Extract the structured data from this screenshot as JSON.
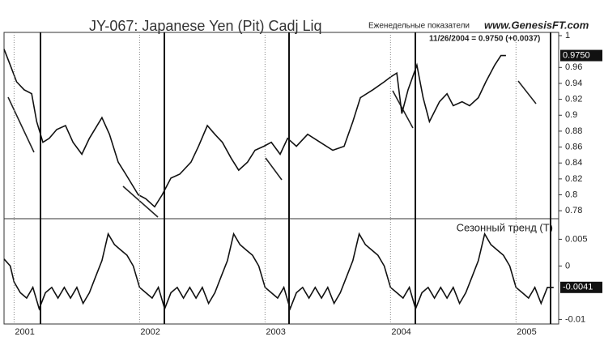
{
  "chart_data": [
    {
      "type": "line",
      "title": "JY-067:  Japanese Yen (Pit) Cadj Liq",
      "subtitle": "Еженедельные показатели",
      "site": "www.GenesisFT.com",
      "annotation": "11/26/2004 = 0.9750 (+0.0037)",
      "last_label": "0.9750",
      "xlim": [
        2000.92,
        2005.34
      ],
      "ylim": [
        0.77,
        1.0
      ],
      "yticks": [
        0.78,
        0.8,
        0.82,
        0.84,
        0.86,
        0.88,
        0.9,
        0.92,
        0.94,
        0.96,
        1
      ],
      "series": [
        {
          "color": "#111111",
          "x": [
            2000.92,
            2000.97,
            2001.02,
            2001.08,
            2001.14,
            2001.18,
            2001.23,
            2001.28,
            2001.34,
            2001.41,
            2001.47,
            2001.54,
            2001.6,
            2001.7,
            2001.76,
            2001.83,
            2001.89,
            2001.99,
            2002.05,
            2002.12,
            2002.18,
            2002.25,
            2002.32,
            2002.41,
            2002.47,
            2002.54,
            2002.6,
            2002.66,
            2002.73,
            2002.79,
            2002.86,
            2002.92,
            2002.99,
            2003.05,
            2003.12,
            2003.18,
            2003.25,
            2003.34,
            2003.44,
            2003.54,
            2003.63,
            2003.7,
            2003.76,
            2003.86,
            2003.95,
            2004.0,
            2004.05,
            2004.09,
            2004.14,
            2004.21,
            2004.26,
            2004.31,
            2004.39,
            2004.45,
            2004.5,
            2004.57,
            2004.63,
            2004.7,
            2004.76,
            2004.83,
            2004.88,
            2004.92
          ],
          "values": [
            0.983,
            0.963,
            0.942,
            0.932,
            0.927,
            0.892,
            0.866,
            0.871,
            0.882,
            0.887,
            0.866,
            0.851,
            0.871,
            0.897,
            0.876,
            0.841,
            0.826,
            0.8,
            0.795,
            0.785,
            0.8,
            0.821,
            0.826,
            0.841,
            0.861,
            0.887,
            0.876,
            0.866,
            0.846,
            0.831,
            0.841,
            0.856,
            0.861,
            0.866,
            0.851,
            0.871,
            0.861,
            0.876,
            0.866,
            0.856,
            0.861,
            0.892,
            0.922,
            0.932,
            0.942,
            0.948,
            0.953,
            0.902,
            0.932,
            0.963,
            0.922,
            0.892,
            0.917,
            0.927,
            0.912,
            0.917,
            0.912,
            0.922,
            0.942,
            0.963,
            0.975,
            0.975
          ]
        }
      ]
    },
    {
      "type": "line",
      "title": "Сезонный тренд (T)",
      "last_label": "-0.0041",
      "xlim": [
        2000.92,
        2005.34
      ],
      "ylim": [
        -0.011,
        0.009
      ],
      "yticks": [
        0.005,
        0,
        -0.01
      ],
      "xticks": [
        2001,
        2002,
        2003,
        2004,
        2005
      ],
      "series": [
        {
          "color": "#111111",
          "x": [
            2000.92,
            2000.97,
            2001.0,
            2001.05,
            2001.1,
            2001.15,
            2001.2,
            2001.25,
            2001.3,
            2001.35,
            2001.4,
            2001.45,
            2001.5,
            2001.55,
            2001.6,
            2001.65,
            2001.7,
            2001.75,
            2001.8,
            2001.85,
            2001.9,
            2001.95,
            2002.0,
            2002.05,
            2002.1,
            2002.15,
            2002.2,
            2002.25,
            2002.3,
            2002.35,
            2002.4,
            2002.45,
            2002.5,
            2002.55,
            2002.6,
            2002.65,
            2002.7,
            2002.75,
            2002.8,
            2002.85,
            2002.9,
            2002.95,
            2003.0,
            2003.05,
            2003.1,
            2003.15,
            2003.2,
            2003.25,
            2003.3,
            2003.35,
            2003.4,
            2003.45,
            2003.5,
            2003.55,
            2003.6,
            2003.65,
            2003.7,
            2003.75,
            2003.8,
            2003.85,
            2003.9,
            2003.95,
            2004.0,
            2004.05,
            2004.1,
            2004.15,
            2004.2,
            2004.25,
            2004.3,
            2004.35,
            2004.4,
            2004.45,
            2004.5,
            2004.55,
            2004.6,
            2004.65,
            2004.7,
            2004.75,
            2004.8,
            2004.85,
            2004.9,
            2004.95,
            2005.0,
            2005.05,
            2005.1,
            2005.15,
            2005.2,
            2005.25,
            2005.3
          ],
          "values": [
            0.0013,
            0.0,
            -0.003,
            -0.005,
            -0.006,
            -0.004,
            -0.008,
            -0.005,
            -0.004,
            -0.006,
            -0.004,
            -0.006,
            -0.004,
            -0.007,
            -0.005,
            -0.002,
            0.001,
            0.006,
            0.004,
            0.003,
            0.002,
            0.0,
            -0.004,
            -0.005,
            -0.006,
            -0.004,
            -0.008,
            -0.005,
            -0.004,
            -0.006,
            -0.004,
            -0.006,
            -0.004,
            -0.007,
            -0.005,
            -0.002,
            0.001,
            0.006,
            0.004,
            0.003,
            0.002,
            0.0,
            -0.004,
            -0.005,
            -0.006,
            -0.004,
            -0.008,
            -0.005,
            -0.004,
            -0.006,
            -0.004,
            -0.006,
            -0.004,
            -0.007,
            -0.005,
            -0.002,
            0.001,
            0.006,
            0.004,
            0.003,
            0.002,
            0.0,
            -0.004,
            -0.005,
            -0.006,
            -0.004,
            -0.008,
            -0.005,
            -0.004,
            -0.006,
            -0.004,
            -0.006,
            -0.004,
            -0.007,
            -0.005,
            -0.002,
            0.001,
            0.006,
            0.004,
            0.003,
            0.002,
            0.0,
            -0.004,
            -0.005,
            -0.006,
            -0.004,
            -0.007,
            -0.004,
            -0.004
          ]
        }
      ]
    }
  ]
}
